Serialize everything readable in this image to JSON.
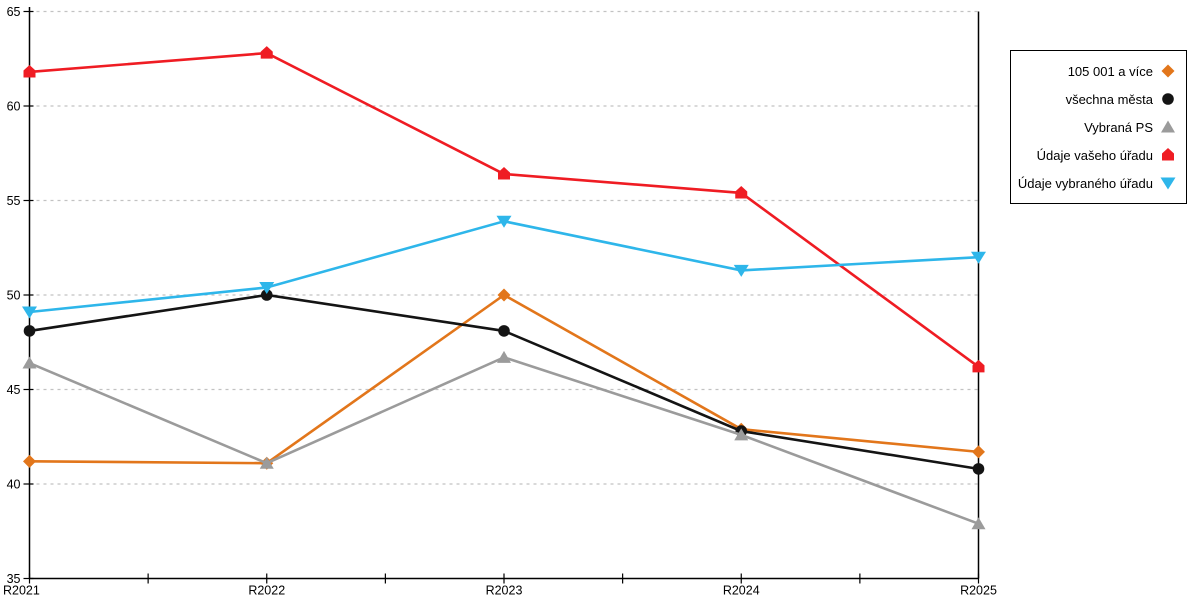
{
  "chart_data": {
    "type": "line",
    "title": "",
    "x_categories": [
      "R2021",
      "R2022",
      "R2023",
      "R2024",
      "R2025"
    ],
    "series": [
      {
        "name": "105 001 a více",
        "color": "#E2761B",
        "marker": "diamond",
        "values": [
          41.2,
          41.1,
          50.0,
          42.9,
          41.7
        ]
      },
      {
        "name": "všechna města",
        "color": "#141414",
        "marker": "circle",
        "values": [
          48.1,
          50.0,
          48.1,
          42.8,
          40.8
        ]
      },
      {
        "name": "Vybraná PS",
        "color": "#9B9B9B",
        "marker": "triangle-up",
        "values": [
          46.4,
          41.1,
          46.7,
          42.6,
          37.9
        ]
      },
      {
        "name": "Údaje vašeho úřadu",
        "color": "#EF1C23",
        "marker": "pentagon",
        "values": [
          61.8,
          62.8,
          56.4,
          55.4,
          46.2
        ]
      },
      {
        "name": "Údaje vybraného úřadu",
        "color": "#2EB6EA",
        "marker": "triangle-down",
        "values": [
          49.1,
          50.4,
          53.9,
          51.3,
          52.0
        ]
      }
    ],
    "ylim": [
      35,
      65
    ],
    "yticks": [
      35,
      40,
      45,
      50,
      55,
      60,
      65
    ],
    "grid": "horizontal-dashed",
    "gridline_color": "#C2C2C2",
    "axis_color": "#000000",
    "legend_position": "top-right"
  },
  "layout_hints": {
    "minor_xticks": "midpoints between year ticks",
    "right_border": "solid vertical line at last category"
  }
}
